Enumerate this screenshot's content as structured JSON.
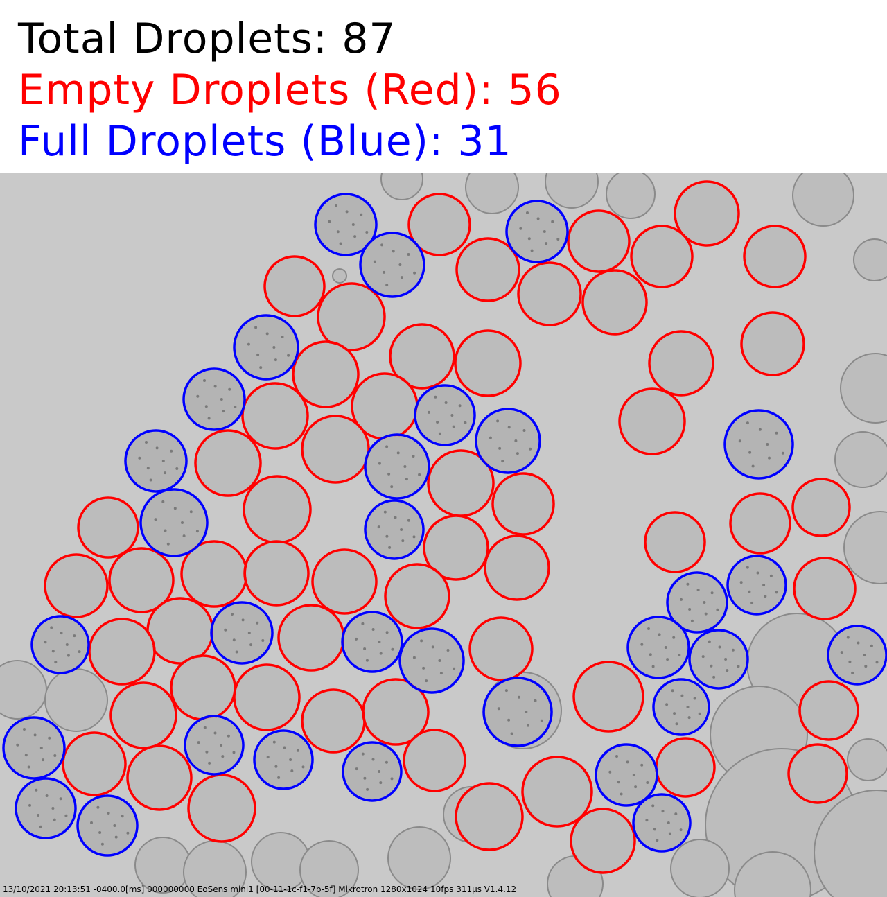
{
  "summary": {
    "total_label": "Total Droplets: 87",
    "empty_label": "Empty Droplets (Red): 56",
    "full_label": "Full Droplets (Blue): 31"
  },
  "colors": {
    "total_text": "#000000",
    "empty_marker": "#ff0000",
    "full_marker": "#0000ff",
    "background": "#c9c9c9",
    "droplet_fill": "#bdbdbd"
  },
  "footer": {
    "camera_info": "13/10/2021 20:13:51 -0400.0[ms] 000000000 EoSens mini1 [00-11-1c-f1-7b-5f] Mikrotron 1280x1024 10fps 311µs V1.4.12"
  }
}
